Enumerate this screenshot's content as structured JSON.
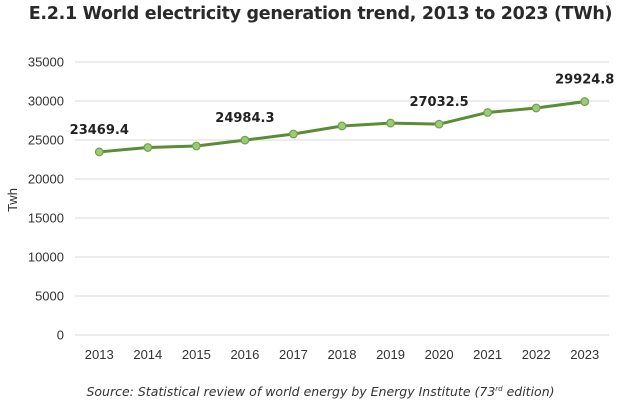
{
  "chart_data": {
    "type": "line",
    "title": "E.2.1 World electricity generation trend, 2013 to 2023 (TWh)",
    "xlabel": "",
    "ylabel": "Twh",
    "ylim": [
      0,
      35000
    ],
    "yticks": [
      0,
      5000,
      10000,
      15000,
      20000,
      25000,
      30000,
      35000
    ],
    "grid": true,
    "legend": "none",
    "categories": [
      "2013",
      "2014",
      "2015",
      "2016",
      "2017",
      "2018",
      "2019",
      "2020",
      "2021",
      "2022",
      "2023"
    ],
    "series": [
      {
        "name": "World electricity generation",
        "color": "#5b8c36",
        "marker_color": "#9ccb77",
        "values": [
          23469.4,
          24040,
          24230,
          24984.3,
          25770,
          26800,
          27170,
          27032.5,
          28530,
          29100,
          29924.8
        ]
      }
    ],
    "data_labels": [
      {
        "index": 0,
        "text": "23469.4"
      },
      {
        "index": 3,
        "text": "24984.3"
      },
      {
        "index": 7,
        "text": "27032.5"
      },
      {
        "index": 10,
        "text": "29924.8"
      }
    ]
  },
  "source": {
    "prefix": "Source: Statistical review of world energy by Energy Institute (73",
    "sup": "rd",
    "suffix": " edition)"
  }
}
